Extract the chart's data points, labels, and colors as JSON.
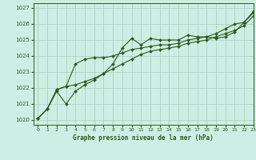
{
  "title": "Graphe pression niveau de la mer (hPa)",
  "bg_color": "#cceee4",
  "grid_color": "#aaccbb",
  "line_color": "#2d5a1b",
  "xlim": [
    -0.5,
    23
  ],
  "ylim": [
    1019.7,
    1027.3
  ],
  "yticks": [
    1020,
    1021,
    1022,
    1023,
    1024,
    1025,
    1026,
    1027
  ],
  "xticks": [
    0,
    1,
    2,
    3,
    4,
    5,
    6,
    7,
    8,
    9,
    10,
    11,
    12,
    13,
    14,
    15,
    16,
    17,
    18,
    19,
    20,
    21,
    22,
    23
  ],
  "line1": [
    1020.1,
    1020.7,
    1021.8,
    1021.0,
    1021.8,
    1022.2,
    1022.5,
    1022.9,
    1023.5,
    1024.5,
    1025.1,
    1024.7,
    1025.1,
    1025.0,
    1025.0,
    1025.0,
    1025.3,
    1025.2,
    1025.2,
    1025.1,
    1025.2,
    1025.5,
    1026.1,
    1026.7
  ],
  "line2": [
    1020.1,
    1020.7,
    1021.9,
    1022.1,
    1022.2,
    1022.4,
    1022.6,
    1022.9,
    1023.2,
    1023.5,
    1023.8,
    1024.1,
    1024.3,
    1024.4,
    1024.5,
    1024.6,
    1024.8,
    1024.9,
    1025.0,
    1025.2,
    1025.4,
    1025.6,
    1025.9,
    1026.5
  ],
  "line3": [
    1020.1,
    1020.7,
    1021.9,
    1022.1,
    1023.5,
    1023.8,
    1023.9,
    1023.9,
    1024.0,
    1024.2,
    1024.4,
    1024.5,
    1024.6,
    1024.7,
    1024.7,
    1024.8,
    1025.0,
    1025.1,
    1025.2,
    1025.4,
    1025.7,
    1026.0,
    1026.1,
    1026.8
  ]
}
